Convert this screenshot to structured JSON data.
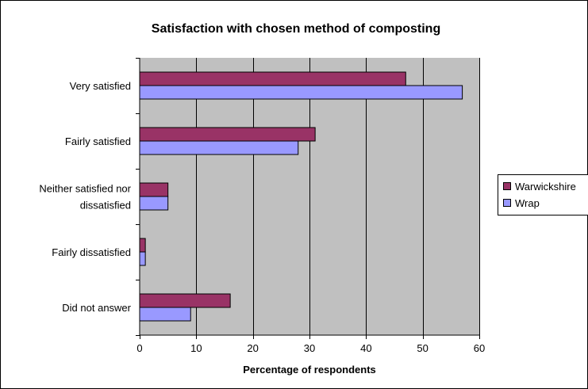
{
  "chart_data": {
    "type": "bar",
    "orientation": "horizontal",
    "title": "Satisfaction with chosen method of composting",
    "xlabel": "Percentage of respondents",
    "ylabel": "",
    "categories": [
      "Very satisfied",
      "Fairly satisfied",
      "Neither satisfied nor dissatisfied",
      "Fairly dissatisfied",
      "Did not answer"
    ],
    "category_lines": [
      [
        "Very satisfied"
      ],
      [
        "Fairly satisfied"
      ],
      [
        "Neither satisfied nor",
        "dissatisfied"
      ],
      [
        "Fairly dissatisfied"
      ],
      [
        "Did not answer"
      ]
    ],
    "series": [
      {
        "name": "Warwickshire",
        "color": "#993366",
        "values": [
          47,
          31,
          5,
          1,
          16
        ]
      },
      {
        "name": "Wrap",
        "color": "#9999ff",
        "values": [
          57,
          28,
          5,
          1,
          9
        ]
      }
    ],
    "xlim": [
      0,
      60
    ],
    "xticks": [
      0,
      10,
      20,
      30,
      40,
      50,
      60
    ],
    "grid": true,
    "plot_background": "#c0c0c0",
    "legend_position": "right"
  }
}
